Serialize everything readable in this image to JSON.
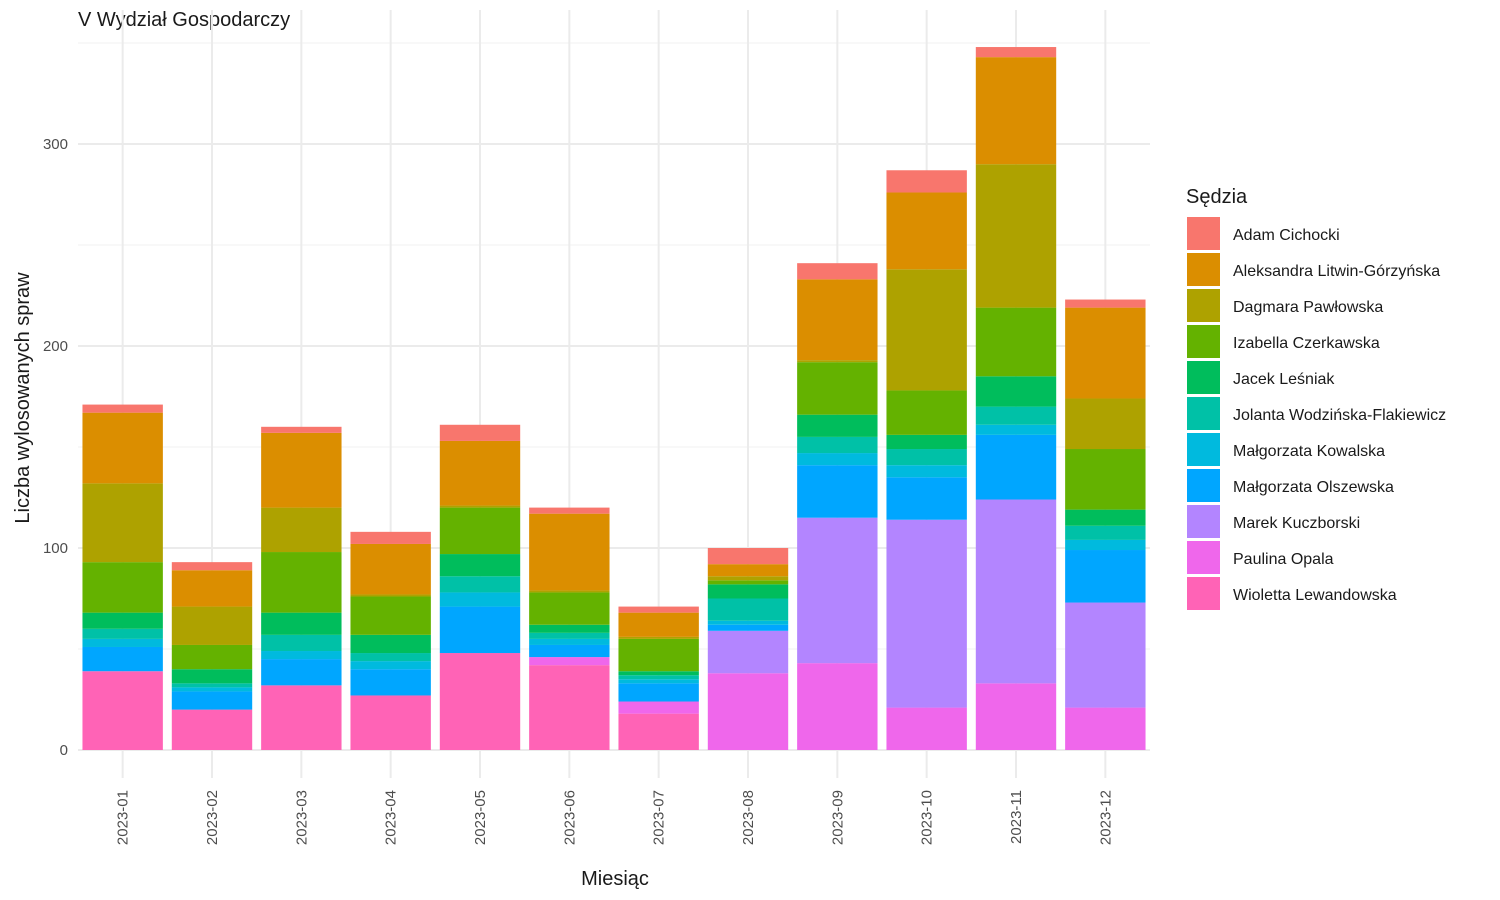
{
  "chart_data": {
    "type": "bar",
    "stacked": true,
    "title": "V Wydział Gospodarczy",
    "xlabel": "Miesiąc",
    "ylabel": "Liczba wylosowanych spraw",
    "ylim": [
      0,
      350
    ],
    "yticks": [
      0,
      100,
      200,
      300
    ],
    "grid": true,
    "legend_title": "Sędzia",
    "legend_position": "right",
    "categories": [
      "2023-01",
      "2023-02",
      "2023-03",
      "2023-04",
      "2023-05",
      "2023-06",
      "2023-07",
      "2023-08",
      "2023-09",
      "2023-10",
      "2023-11",
      "2023-12"
    ],
    "series": [
      {
        "name": "Adam Cichocki",
        "color": "#F8766D",
        "values": [
          4,
          4,
          3,
          6,
          8,
          3,
          3,
          8,
          8,
          11,
          5,
          4
        ]
      },
      {
        "name": "Aleksandra Litwin-Górzyńska",
        "color": "#DB8E00",
        "values": [
          35,
          18,
          37,
          25,
          32,
          38,
          12,
          6,
          40,
          38,
          53,
          45
        ]
      },
      {
        "name": "Dagmara Pawłowska",
        "color": "#AEA200",
        "values": [
          39,
          19,
          22,
          1,
          1,
          1,
          1,
          2,
          1,
          60,
          71,
          25
        ]
      },
      {
        "name": "Izabella Czerkawska",
        "color": "#64B200",
        "values": [
          25,
          12,
          30,
          19,
          23,
          16,
          16,
          2,
          26,
          22,
          34,
          30
        ]
      },
      {
        "name": "Jacek Leśniak",
        "color": "#00BD5C",
        "values": [
          8,
          7,
          11,
          9,
          11,
          4,
          2,
          7,
          11,
          7,
          15,
          8
        ]
      },
      {
        "name": "Jolanta Wodzińska-Flakiewicz",
        "color": "#00C1A7",
        "values": [
          5,
          2,
          8,
          4,
          8,
          3,
          2,
          11,
          8,
          8,
          9,
          7
        ]
      },
      {
        "name": "Małgorzata Kowalska",
        "color": "#00BADE",
        "values": [
          4,
          2,
          4,
          4,
          7,
          3,
          2,
          2,
          6,
          6,
          5,
          5
        ]
      },
      {
        "name": "Małgorzata Olszewska",
        "color": "#00A6FF",
        "values": [
          12,
          9,
          13,
          13,
          23,
          6,
          9,
          3,
          26,
          21,
          32,
          26
        ]
      },
      {
        "name": "Marek Kuczborski",
        "color": "#B385FF",
        "values": [
          0,
          0,
          0,
          0,
          0,
          0,
          0,
          21,
          72,
          93,
          91,
          52
        ]
      },
      {
        "name": "Paulina Opala",
        "color": "#EF67EB",
        "values": [
          0,
          0,
          0,
          0,
          0,
          4,
          6,
          38,
          43,
          21,
          33,
          21
        ]
      },
      {
        "name": "Wioletta Lewandowska",
        "color": "#FF63B6",
        "values": [
          39,
          20,
          32,
          27,
          48,
          42,
          18,
          0,
          0,
          0,
          0,
          0
        ]
      }
    ]
  }
}
